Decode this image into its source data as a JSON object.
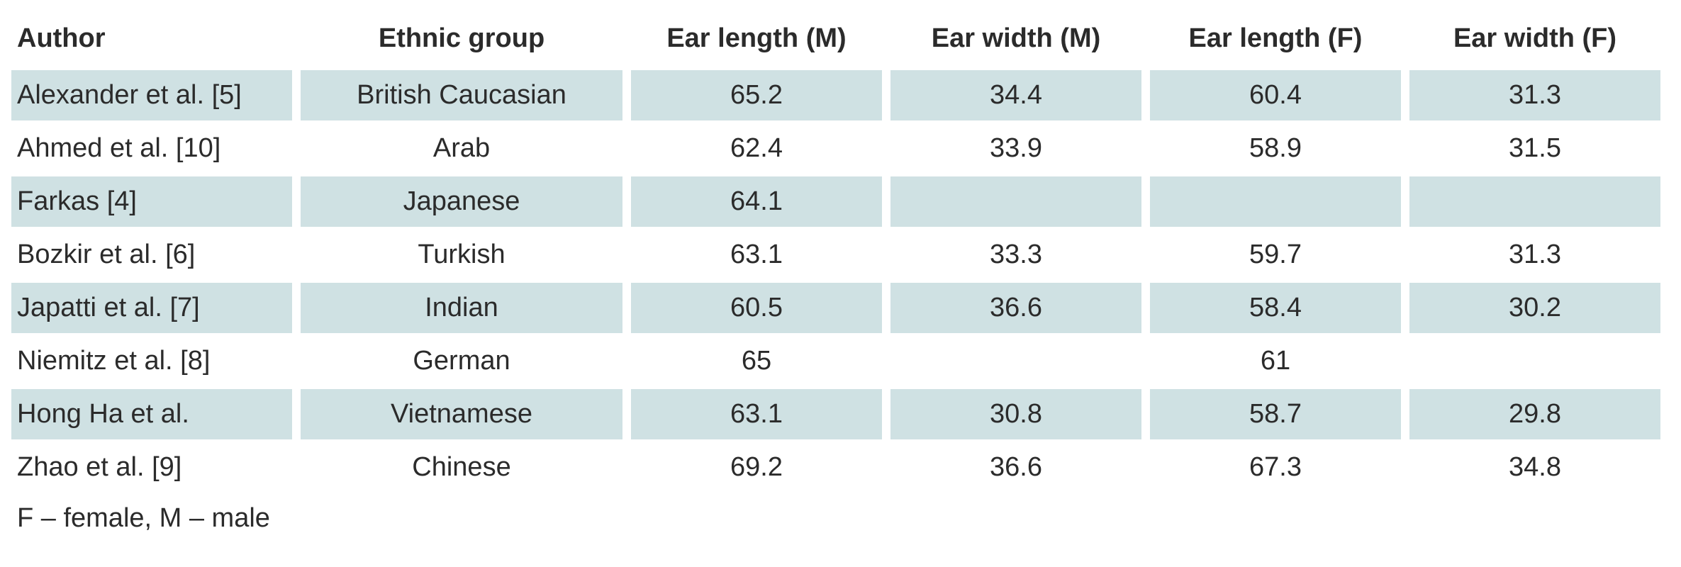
{
  "table": {
    "headers": [
      "Author",
      "Ethnic group",
      "Ear length (M)",
      "Ear width (M)",
      "Ear length (F)",
      "Ear width (F)"
    ],
    "rows": [
      [
        "Alexander et al. [5]",
        "British Caucasian",
        "65.2",
        "34.4",
        "60.4",
        "31.3"
      ],
      [
        "Ahmed et al. [10]",
        "Arab",
        "62.4",
        "33.9",
        "58.9",
        "31.5"
      ],
      [
        "Farkas [4]",
        "Japanese",
        "64.1",
        "",
        "",
        ""
      ],
      [
        "Bozkir et al. [6]",
        "Turkish",
        "63.1",
        "33.3",
        "59.7",
        "31.3"
      ],
      [
        "Japatti et al. [7]",
        "Indian",
        "60.5",
        "36.6",
        "58.4",
        "30.2"
      ],
      [
        "Niemitz et al. [8]",
        "German",
        "65",
        "",
        "61",
        ""
      ],
      [
        "Hong Ha et al.",
        "Vietnamese",
        "63.1",
        "30.8",
        "58.7",
        "29.8"
      ],
      [
        "Zhao et al. [9]",
        "Chinese",
        "69.2",
        "36.6",
        "67.3",
        "34.8"
      ]
    ],
    "shaded_row_color": "#cfe1e3"
  },
  "footnote": "F – female, M – male"
}
